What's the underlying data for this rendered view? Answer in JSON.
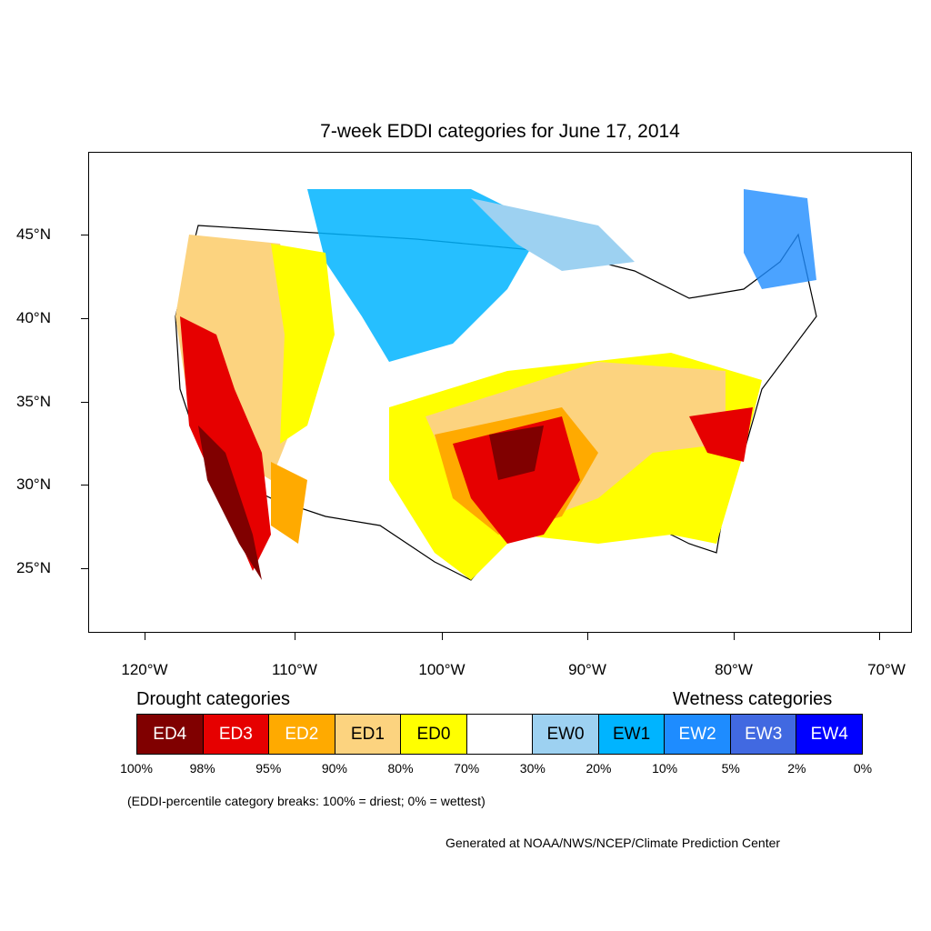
{
  "title": "7-week EDDI categories for June 17, 2014",
  "y_axis": [
    "45°N",
    "40°N",
    "35°N",
    "30°N",
    "25°N"
  ],
  "x_axis": [
    "120°W",
    "110°W",
    "100°W",
    "90°W",
    "80°W",
    "70°W"
  ],
  "legend": {
    "drought_title": "Drought categories",
    "wetness_title": "Wetness categories",
    "categories": [
      {
        "label": "ED4",
        "color": "#800000",
        "text_color": "#ffffff"
      },
      {
        "label": "ED3",
        "color": "#e60000",
        "text_color": "#ffffff"
      },
      {
        "label": "ED2",
        "color": "#ffaa00",
        "text_color": "#ffffff"
      },
      {
        "label": "ED1",
        "color": "#fcd37f",
        "text_color": "#000000"
      },
      {
        "label": "ED0",
        "color": "#ffff00",
        "text_color": "#000000"
      },
      {
        "label": "",
        "color": "#ffffff",
        "text_color": "#000000"
      },
      {
        "label": "EW0",
        "color": "#9dd1f1",
        "text_color": "#000000"
      },
      {
        "label": "EW1",
        "color": "#00b4ff",
        "text_color": "#000000"
      },
      {
        "label": "EW2",
        "color": "#1e8cff",
        "text_color": "#ffffff"
      },
      {
        "label": "EW3",
        "color": "#4169e1",
        "text_color": "#ffffff"
      },
      {
        "label": "EW4",
        "color": "#0000ff",
        "text_color": "#ffffff"
      }
    ],
    "breaks": [
      "100%",
      "98%",
      "95%",
      "90%",
      "80%",
      "70%",
      "30%",
      "20%",
      "10%",
      "5%",
      "2%",
      "0%"
    ]
  },
  "note": "(EDDI-percentile category breaks: 100% = driest; 0% = wettest)",
  "credit": "Generated at NOAA/NWS/NCEP/Climate Prediction Center"
}
